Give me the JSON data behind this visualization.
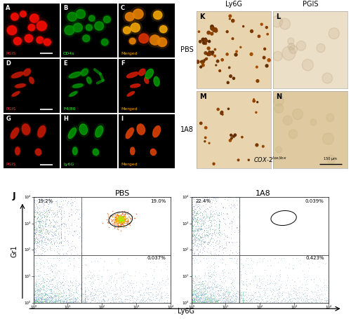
{
  "figure_size": [
    5.0,
    4.55
  ],
  "dpi": 100,
  "background_color": "#ffffff",
  "panels_top_left": {
    "labels": [
      "A",
      "B",
      "C",
      "D",
      "E",
      "F",
      "G",
      "H",
      "I"
    ],
    "bg_colors": [
      "#000000",
      "#000000",
      "#000000",
      "#000000",
      "#000000",
      "#000000",
      "#000000",
      "#000000",
      "#000000"
    ],
    "overlay_labels": [
      "PGIS",
      "CD4s",
      "Merged",
      "PGIS",
      "F4/80",
      "Merged",
      "PGIS",
      "Ly6G",
      "Merged"
    ],
    "overlay_colors": [
      "#ff3333",
      "#33ff33",
      "#ffaa00",
      "#ff3333",
      "#33ff33",
      "#ffaa00",
      "#ff3333",
      "#33ff33",
      "#ffaa00"
    ]
  },
  "panels_top_right": {
    "col_headers": [
      "Ly6G",
      "PGIS"
    ],
    "row_headers": [
      "PBS",
      "1A8"
    ],
    "panel_labels": [
      "K",
      "L",
      "M",
      "N"
    ],
    "K_bg": "#e8d5b0",
    "L_bg": "#ecdfc8",
    "M_bg": "#e8d5b0",
    "N_bg": "#dfc9a0",
    "cox_label": "COX-2"
  },
  "panel_J": {
    "label": "J",
    "left_title": "PBS",
    "right_title": "1A8",
    "xlabel": "Ly6G",
    "ylabel": "Gr1",
    "left_UL": "19.2%",
    "left_UR": "19.0%",
    "left_LR": "0.037%",
    "right_UL": "22.4%",
    "right_UR": "0.039%",
    "right_LR": "0.423%"
  }
}
